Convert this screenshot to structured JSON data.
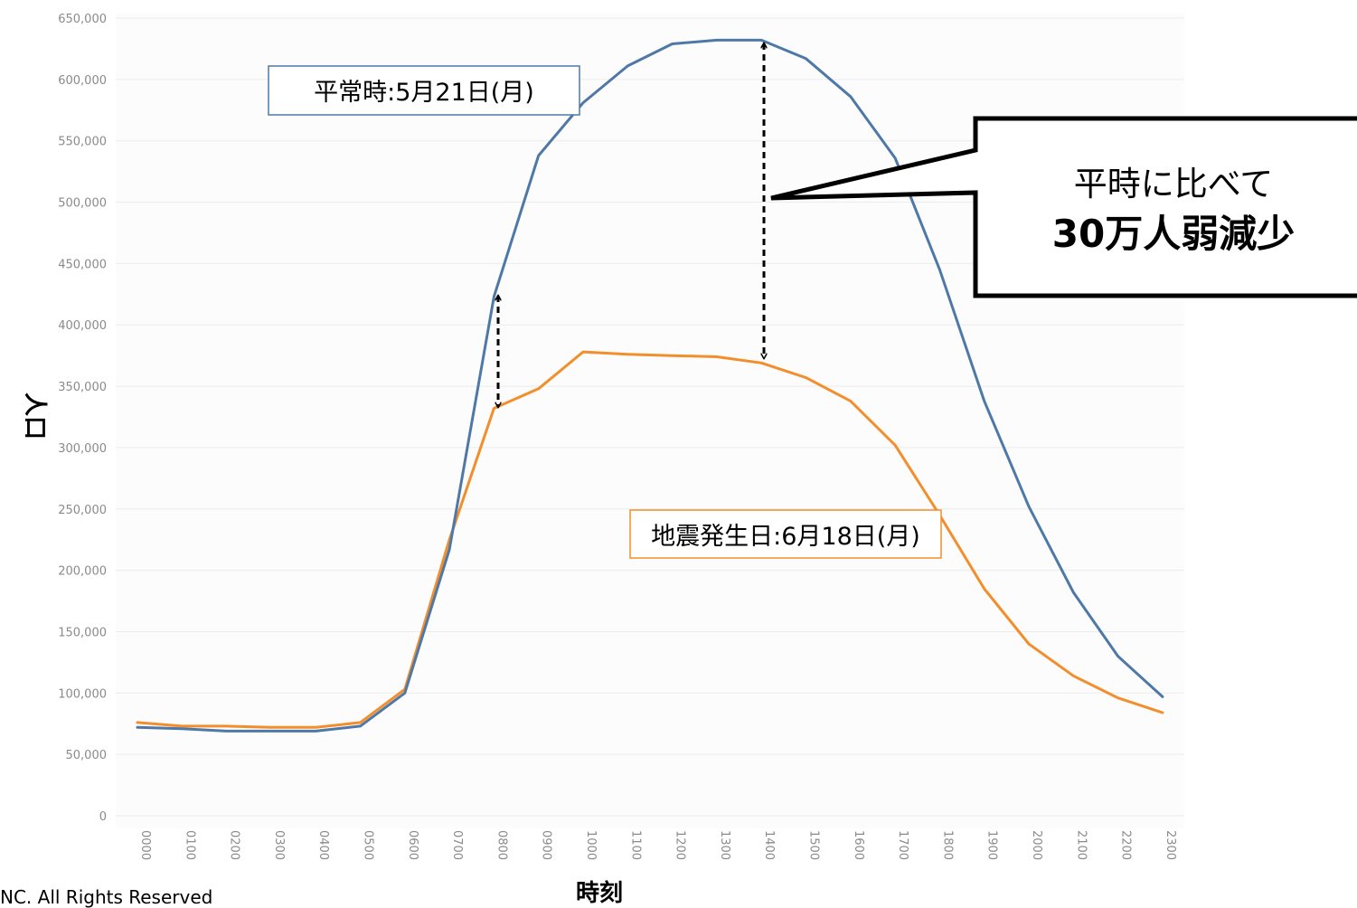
{
  "chart_data": {
    "type": "line",
    "xlabel": "時刻",
    "ylabel": "人口",
    "ylim": [
      0,
      650000
    ],
    "y_ticks": [
      "0",
      "50,000",
      "100,000",
      "150,000",
      "200,000",
      "250,000",
      "300,000",
      "350,000",
      "400,000",
      "450,000",
      "500,000",
      "550,000",
      "600,000",
      "650,000"
    ],
    "x": [
      "0000",
      "0100",
      "0200",
      "0300",
      "0400",
      "0500",
      "0600",
      "0700",
      "0800",
      "0900",
      "1000",
      "1100",
      "1200",
      "1300",
      "1400",
      "1500",
      "1600",
      "1700",
      "1800",
      "1900",
      "2000",
      "2100",
      "2200",
      "2300"
    ],
    "grid": true,
    "series": [
      {
        "name": "平常時:5月21日(月)",
        "color": "#4e79a7",
        "values": [
          72000,
          71000,
          69000,
          69000,
          69000,
          73000,
          100000,
          217000,
          423000,
          538000,
          581000,
          611000,
          629000,
          632000,
          632000,
          617000,
          586000,
          536000,
          445000,
          338000,
          252000,
          182000,
          130000,
          97000
        ]
      },
      {
        "name": "地震発生日:6月18日(月)",
        "color": "#f28e2b",
        "values": [
          76000,
          73000,
          73000,
          72000,
          72000,
          76000,
          103000,
          225000,
          332000,
          348000,
          378000,
          376000,
          375000,
          374000,
          369000,
          357000,
          338000,
          302000,
          245000,
          185000,
          140000,
          114000,
          96000,
          84000
        ]
      }
    ],
    "annotations": {
      "callout_line1": "平時に比べて",
      "callout_line2": "30万人弱減少"
    }
  },
  "footer": {
    "copyright": "NC. All Rights Reserved"
  }
}
